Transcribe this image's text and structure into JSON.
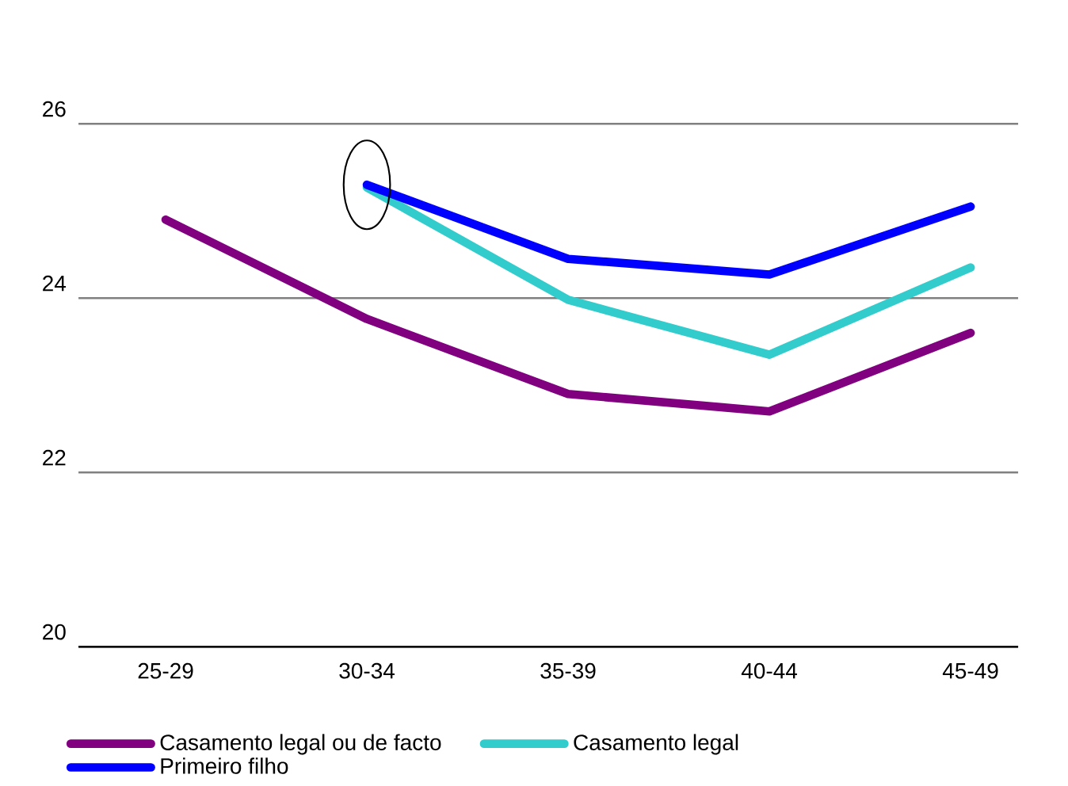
{
  "chart_data": {
    "type": "line",
    "categories": [
      "25-29",
      "30-34",
      "35-39",
      "40-44",
      "45-49"
    ],
    "series": [
      {
        "name": "Casamento legal ou de facto",
        "color": "#800080",
        "values": [
          24.9,
          23.76,
          22.9,
          22.7,
          23.6
        ]
      },
      {
        "name": "Casamento legal",
        "color": "#33cccc",
        "values": [
          null,
          25.27,
          23.98,
          23.35,
          24.35
        ]
      },
      {
        "name": "Primeiro filho",
        "color": "#0000ff",
        "values": [
          null,
          25.3,
          24.45,
          24.27,
          25.05
        ]
      }
    ],
    "ylim": [
      20,
      26
    ],
    "yticks": [
      20,
      22,
      24,
      26
    ],
    "grid": "y",
    "legend": "bottom",
    "marker": "none",
    "line_style": "solid"
  }
}
